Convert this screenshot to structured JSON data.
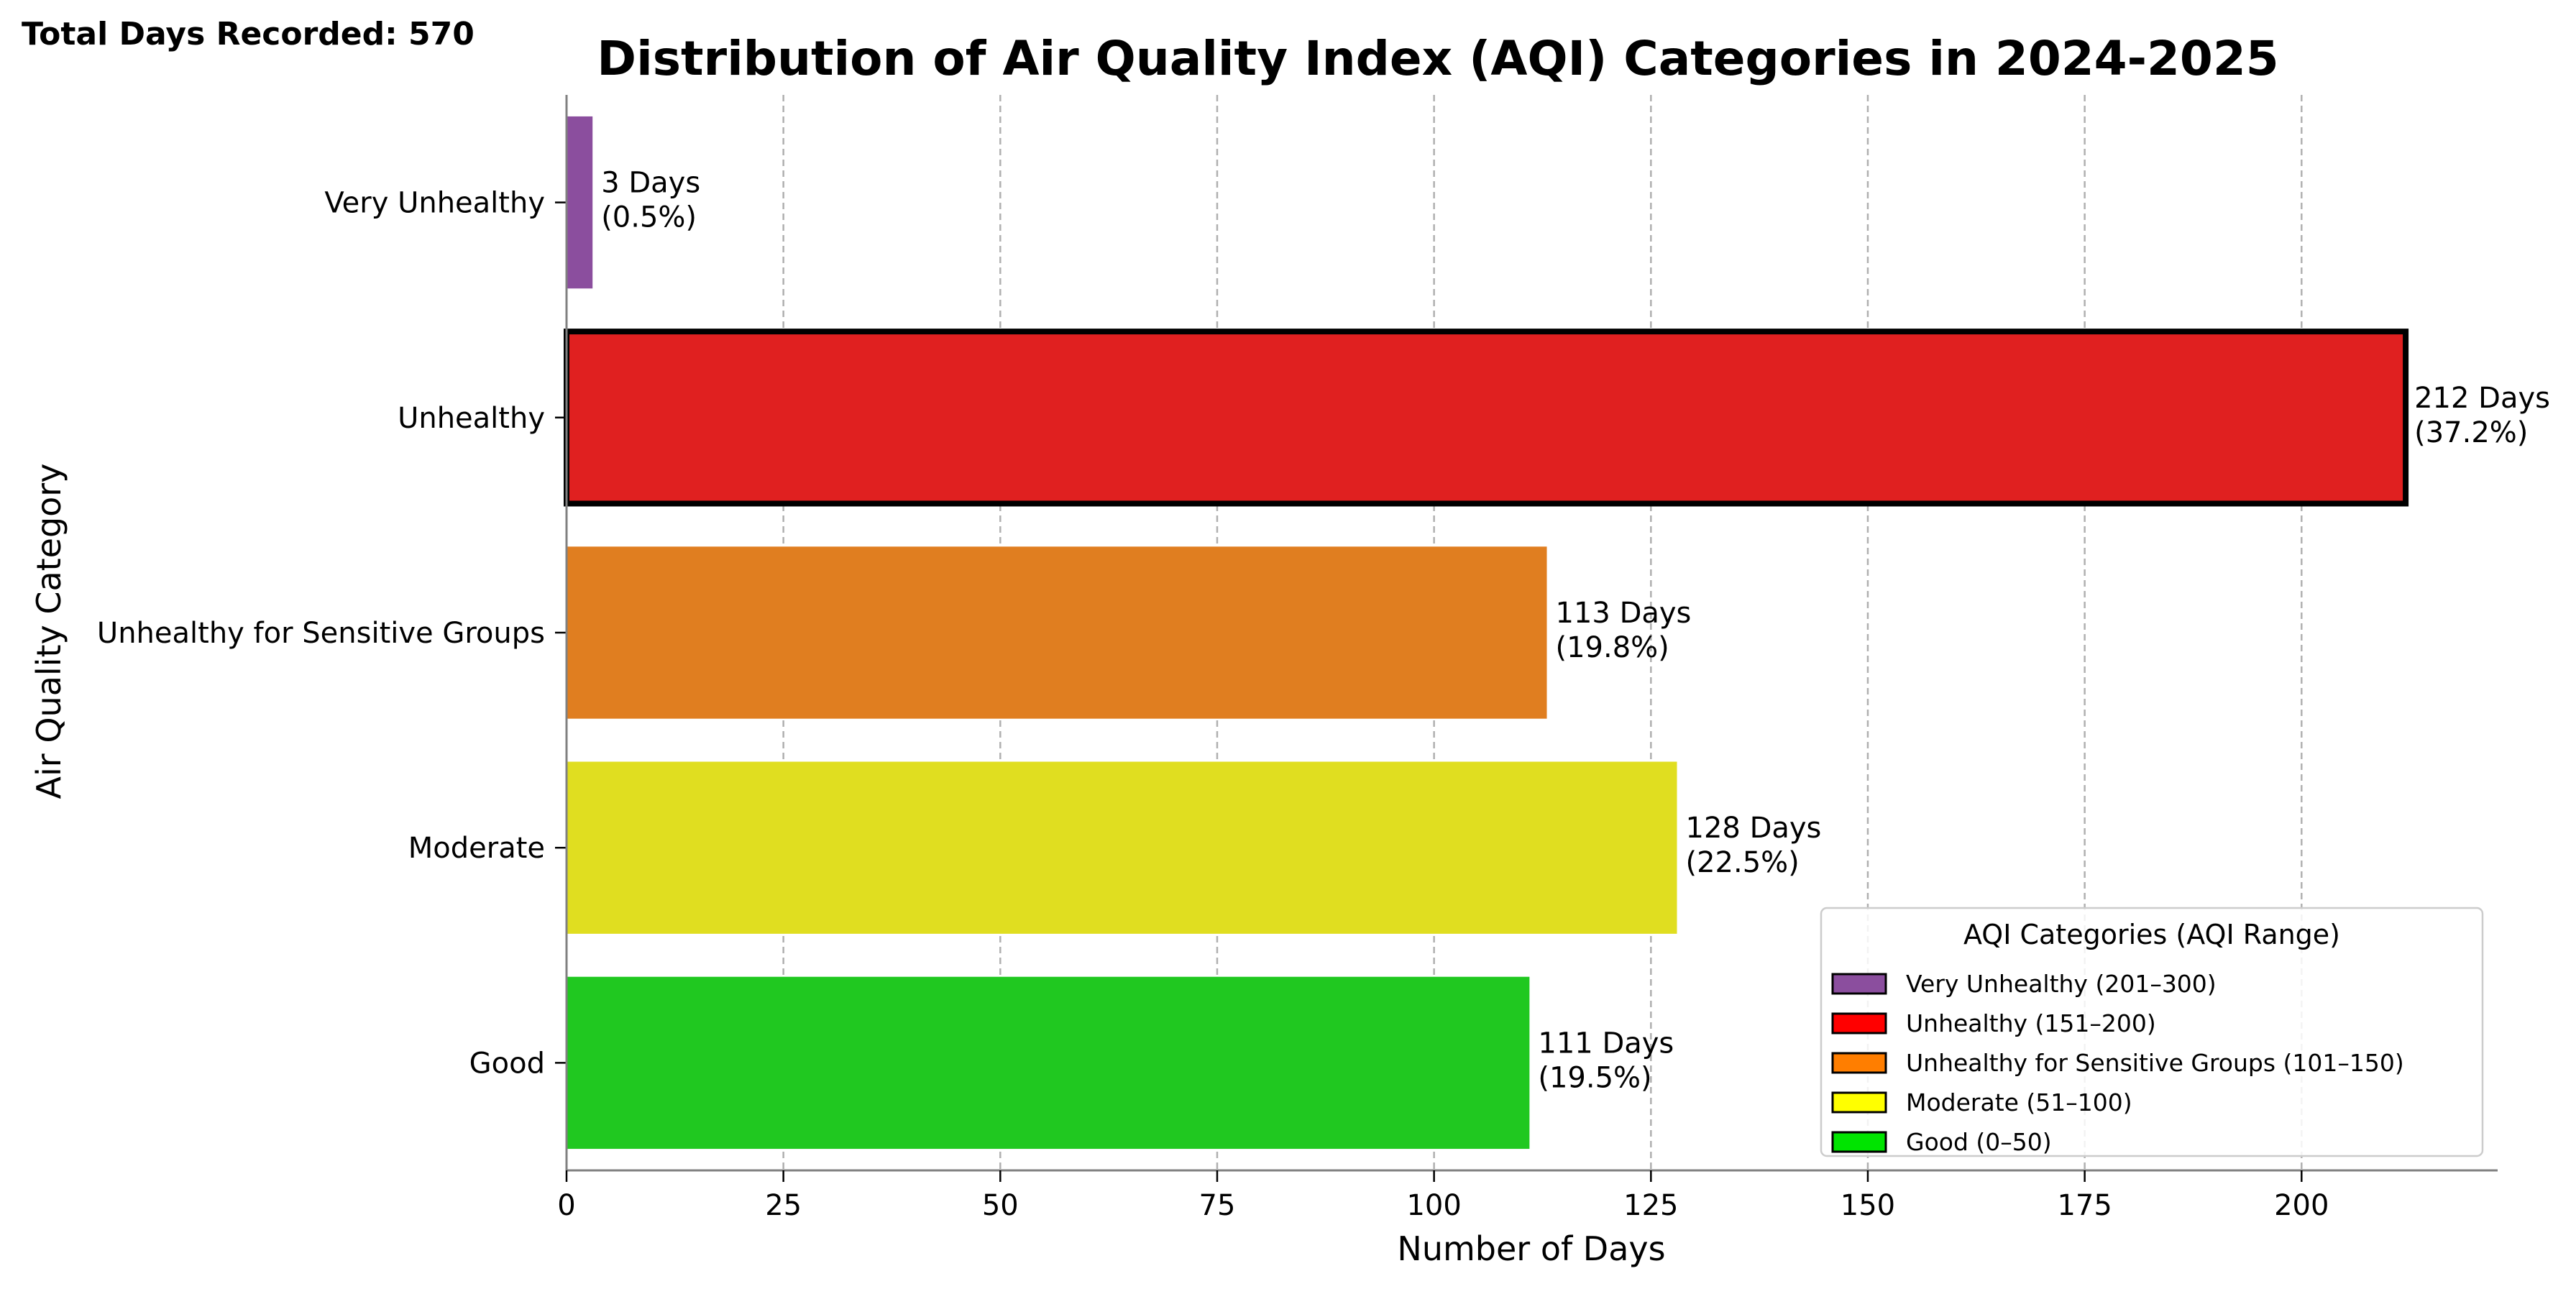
{
  "header_note": "Total Days Recorded: 570",
  "chart_data": {
    "type": "bar",
    "orientation": "horizontal",
    "title": "Distribution of Air Quality Index (AQI) Categories in 2024-2025",
    "xlabel": "Number of Days",
    "ylabel": "Air Quality Category",
    "xlim": [
      0,
      222.6
    ],
    "xticks": [
      0,
      25,
      50,
      75,
      100,
      125,
      150,
      175,
      200
    ],
    "grid": "vertical dashed",
    "categories": [
      "Very Unhealthy",
      "Unhealthy",
      "Unhealthy for Sensitive Groups",
      "Moderate",
      "Good"
    ],
    "values": [
      3,
      212,
      113,
      128,
      111
    ],
    "value_labels": [
      [
        "3 Days",
        "(0.5%)"
      ],
      [
        "212 Days",
        "(37.2%)"
      ],
      [
        "113 Days",
        "(19.8%)"
      ],
      [
        "128 Days",
        "(22.5%)"
      ],
      [
        "111 Days",
        "(19.5%)"
      ]
    ],
    "colors": [
      "#8b4e9e",
      "#e02020",
      "#e07e20",
      "#e0de20",
      "#20c820"
    ],
    "highlighted": "Unhealthy",
    "legend": {
      "title": "AQI Categories (AQI Range)",
      "placement": "lower-right",
      "entries": [
        {
          "label": "Very Unhealthy (201–300)",
          "color": "#8b4e9e"
        },
        {
          "label": "Unhealthy (151–200)",
          "color": "#ff0000"
        },
        {
          "label": "Unhealthy for Sensitive Groups (101–150)",
          "color": "#ff7e00"
        },
        {
          "label": "Moderate (51–100)",
          "color": "#ffff00"
        },
        {
          "label": "Good (0–50)",
          "color": "#00e400"
        }
      ]
    }
  }
}
